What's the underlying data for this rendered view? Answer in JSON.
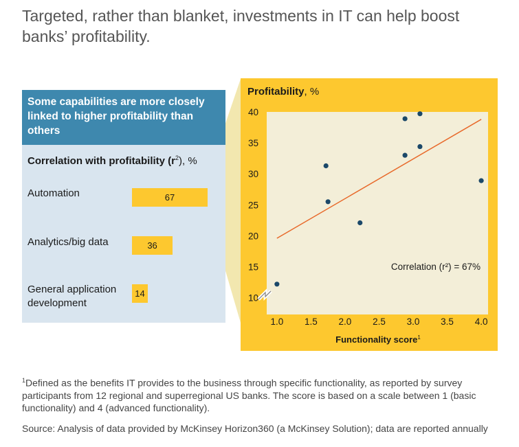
{
  "title": "Targeted, rather than blanket, investments in IT can help boost banks’ profitability.",
  "left_panel": {
    "header": "Some capabilities are more closely linked to higher profitability than others",
    "correlation_label": "Correlation with profitability (r",
    "correlation_sup": "2",
    "correlation_suffix": "), %",
    "capabilities": [
      {
        "label": "Automation",
        "value": 67
      },
      {
        "label": "Analytics/big data",
        "value": 36
      },
      {
        "label": "General application development",
        "value": 14
      }
    ]
  },
  "chart_data": {
    "type": "scatter",
    "title": "Profitability",
    "title_unit": ", %",
    "xlabel": "Functionality score",
    "xlabel_sup": "1",
    "ylabel": "Profitability, %",
    "xlim": [
      0.85,
      4.1
    ],
    "ylim": [
      7.3,
      40
    ],
    "x_ticks": [
      "1.0",
      "1.5",
      "2.0",
      "2.5",
      "3.0",
      "3.5",
      "4.0"
    ],
    "y_ticks": [
      "10",
      "15",
      "20",
      "25",
      "30",
      "35",
      "40"
    ],
    "points": [
      {
        "x": 1.0,
        "y": 12.2
      },
      {
        "x": 1.72,
        "y": 31.3
      },
      {
        "x": 1.75,
        "y": 25.5
      },
      {
        "x": 2.22,
        "y": 22.1
      },
      {
        "x": 2.88,
        "y": 38.9
      },
      {
        "x": 2.88,
        "y": 33.0
      },
      {
        "x": 3.1,
        "y": 39.7
      },
      {
        "x": 3.1,
        "y": 34.4
      },
      {
        "x": 4.0,
        "y": 28.9
      }
    ],
    "trendline": {
      "x": [
        1.0,
        4.0
      ],
      "y": [
        19.6,
        38.8
      ]
    },
    "annotation": "Correlation (r²) = 67%",
    "grid": false,
    "axis_break": true,
    "colors": {
      "panel": "#fdc82f",
      "plot": "#f3eed8",
      "point": "#1b4869",
      "trend": "#e8692a"
    }
  },
  "footnote": {
    "marker": "1",
    "text": "Defined as the benefits IT provides to the business through specific functionality, as reported by survey participants from 12 regional and superregional US banks. The score is based on a scale between 1 (basic functionality) and 4 (advanced functionality)."
  },
  "source": "Source: Analysis of data provided by McKinsey Horizon360 (a McKinsey Solution); data are reported annually"
}
